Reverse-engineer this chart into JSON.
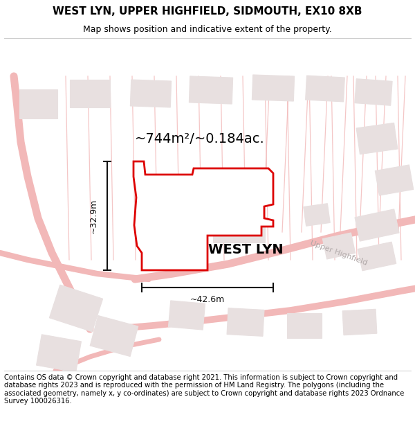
{
  "title": "WEST LYN, UPPER HIGHFIELD, SIDMOUTH, EX10 8XB",
  "subtitle": "Map shows position and indicative extent of the property.",
  "footer": "Contains OS data © Crown copyright and database right 2021. This information is subject to Crown copyright and database rights 2023 and is reproduced with the permission of HM Land Registry. The polygons (including the associated geometry, namely x, y co-ordinates) are subject to Crown copyright and database rights 2023 Ordnance Survey 100026316.",
  "property_label": "WEST LYN",
  "area_label": "~744m²/~0.184ac.",
  "width_label": "~42.6m",
  "height_label": "~32.9m",
  "road_label": "Upper Highfield",
  "bg_color": "#ffffff",
  "map_bg": "#ffffff",
  "road_color": "#f2b8b8",
  "cadastral_color": "#f2b8b8",
  "building_fill": "#e8e0e0",
  "building_edge": "#e8e0e0",
  "property_outline_color": "#dd0000",
  "property_fill": "#ffffff",
  "dim_color": "#111111",
  "title_fontsize": 11,
  "subtitle_fontsize": 9,
  "footer_fontsize": 7.2,
  "road_label_color": "#b0a8a8"
}
